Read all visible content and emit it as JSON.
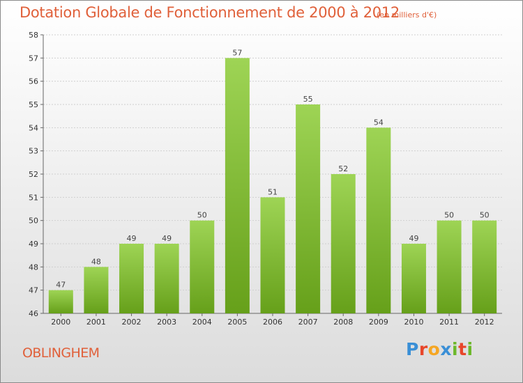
{
  "header": {
    "title": "Dotation Globale de Fonctionnement de 2000 à 2012",
    "unit": "(en milliers d'€)"
  },
  "footer": {
    "commune": "OBLINGHEM",
    "logo_text": "Proxiti",
    "logo_colors": [
      "#3a8fd6",
      "#e8462a",
      "#f5a623",
      "#3a8fd6",
      "#6cb82a",
      "#e8462a",
      "#6cb82a"
    ]
  },
  "colors": {
    "bar_light": "#9ed455",
    "bar_dark": "#66a01a",
    "title": "#e0603a"
  },
  "chart_data": {
    "type": "bar",
    "title": "Dotation Globale de Fonctionnement de 2000 à 2012",
    "xlabel": "",
    "ylabel": "",
    "categories": [
      "2000",
      "2001",
      "2002",
      "2003",
      "2004",
      "2005",
      "2006",
      "2007",
      "2008",
      "2009",
      "2010",
      "2011",
      "2012"
    ],
    "values": [
      47,
      48,
      49,
      49,
      50,
      57,
      51,
      55,
      52,
      54,
      49,
      50,
      50
    ],
    "ylim": [
      46,
      58
    ],
    "yticks": [
      46,
      47,
      48,
      49,
      50,
      51,
      52,
      53,
      54,
      55,
      56,
      57,
      58
    ],
    "grid": true
  }
}
